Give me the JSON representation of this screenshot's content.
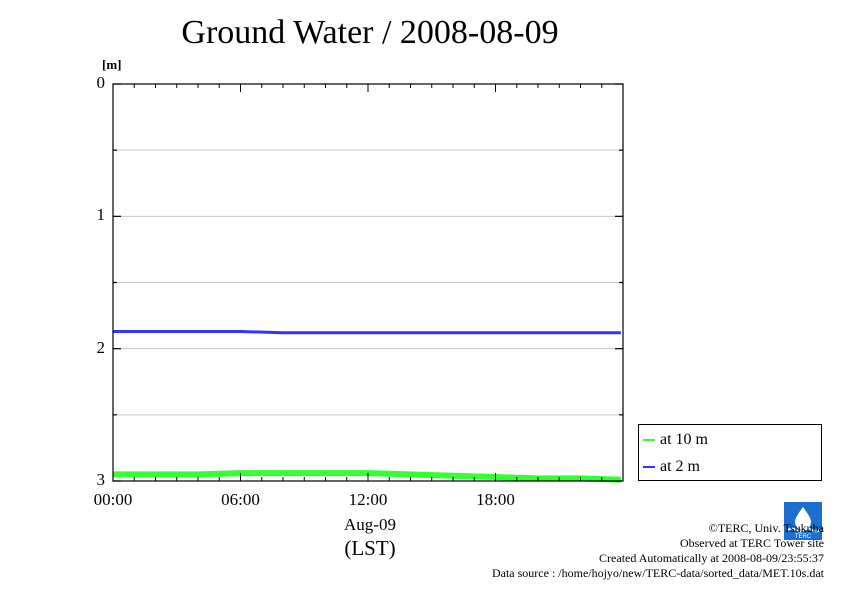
{
  "chart_data": {
    "type": "line",
    "title": "Ground Water / 2008-08-09",
    "ylabel": "[m]",
    "ylim": [
      0,
      3
    ],
    "y_inverted": true,
    "y_ticks": [
      0,
      1,
      2,
      3
    ],
    "xlim": [
      "00:00",
      "24:00"
    ],
    "x_ticks": [
      "00:00",
      "06:00",
      "12:00",
      "18:00"
    ],
    "x_date": "Aug-09",
    "x_unit": "(LST)",
    "grid": "horizontal",
    "series": [
      {
        "name": "at 10 m",
        "color": "#33ff33",
        "x_hours": [
          0,
          2,
          4,
          6,
          8,
          10,
          12,
          14,
          16,
          18,
          20,
          22,
          23.9
        ],
        "values": [
          2.95,
          2.95,
          2.95,
          2.94,
          2.94,
          2.94,
          2.94,
          2.95,
          2.96,
          2.97,
          2.98,
          2.98,
          2.99
        ]
      },
      {
        "name": "at 2 m",
        "color": "#3333ff",
        "x_hours": [
          0,
          2,
          4,
          6,
          8,
          10,
          12,
          14,
          16,
          18,
          20,
          22,
          23.9
        ],
        "values": [
          1.87,
          1.87,
          1.87,
          1.87,
          1.88,
          1.88,
          1.88,
          1.88,
          1.88,
          1.88,
          1.88,
          1.88,
          1.88
        ]
      }
    ],
    "legend_position": "right-bottom"
  },
  "credits": {
    "copyright": "©TERC, Univ. Tsukuba",
    "observed": "Observed at TERC Tower site",
    "created": "Created Automatically at 2008-08-09/23:55:37",
    "source": "Data source : /home/hojyo/new/TERC-data/sorted_data/MET.10s.dat"
  },
  "logo": {
    "text": "TERC",
    "color": "#1a6fd1"
  }
}
